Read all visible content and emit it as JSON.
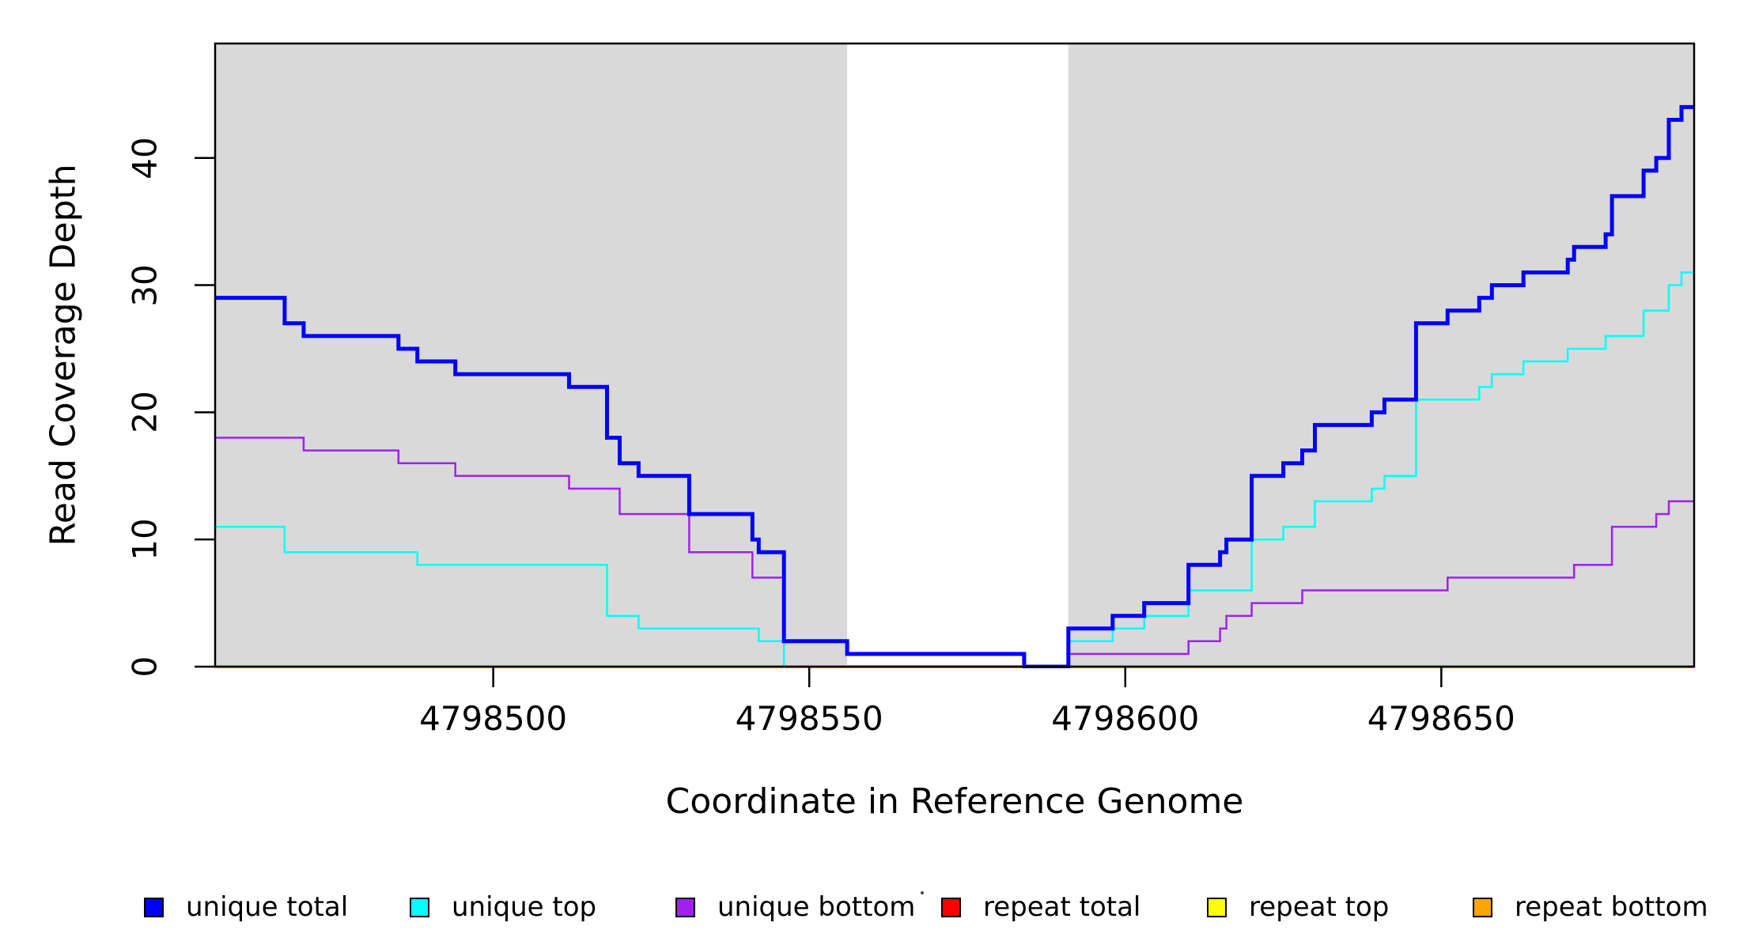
{
  "chart_data": {
    "type": "line",
    "subtype": "step-coverage",
    "title": "",
    "xlabel": "Coordinate in Reference Genome",
    "ylabel": "Read Coverage Depth",
    "x_domain": [
      4798456,
      4798690
    ],
    "y_domain": [
      0,
      49
    ],
    "x_ticks": [
      4798500,
      4798550,
      4798600,
      4798650
    ],
    "y_ticks": [
      0,
      10,
      20,
      30,
      40
    ],
    "grid": false,
    "plot_background": "#ffffff",
    "shading_color": "#D9D9D9",
    "shaded_regions": [
      [
        4798456,
        4798556
      ],
      [
        4798591,
        4798690
      ]
    ],
    "unshaded_gap": [
      4798556,
      4798591
    ],
    "axis_color": "#000000",
    "series": [
      {
        "name": "repeat total",
        "color": "#FF0000",
        "line_width": 4,
        "steps": [
          [
            4798456,
            0
          ]
        ]
      },
      {
        "name": "repeat top",
        "color": "#FFFF00",
        "line_width": 4,
        "steps": [
          [
            4798456,
            0
          ]
        ]
      },
      {
        "name": "repeat bottom",
        "color": "#FFA500",
        "line_width": 4,
        "steps": [
          [
            4798456,
            0
          ]
        ]
      },
      {
        "name": "unique bottom",
        "color": "#A020F0",
        "line_width": 2.5,
        "steps": [
          [
            4798456,
            18
          ],
          [
            4798470,
            17
          ],
          [
            4798485,
            16
          ],
          [
            4798494,
            15
          ],
          [
            4798512,
            14
          ],
          [
            4798520,
            12
          ],
          [
            4798531,
            9
          ],
          [
            4798541,
            7
          ],
          [
            4798546,
            2
          ],
          [
            4798556,
            1
          ],
          [
            4798584,
            0
          ],
          [
            4798591,
            1
          ],
          [
            4798610,
            2
          ],
          [
            4798615,
            3
          ],
          [
            4798616,
            4
          ],
          [
            4798620,
            5
          ],
          [
            4798628,
            6
          ],
          [
            4798651,
            7
          ],
          [
            4798671,
            8
          ],
          [
            4798677,
            11
          ],
          [
            4798684,
            12
          ],
          [
            4798686,
            13
          ]
        ]
      },
      {
        "name": "unique top",
        "color": "#00FFFF",
        "line_width": 2.5,
        "steps": [
          [
            4798456,
            11
          ],
          [
            4798467,
            9
          ],
          [
            4798488,
            8
          ],
          [
            4798518,
            4
          ],
          [
            4798523,
            3
          ],
          [
            4798542,
            2
          ],
          [
            4798546,
            0
          ],
          [
            4798591,
            2
          ],
          [
            4798598,
            3
          ],
          [
            4798603,
            4
          ],
          [
            4798610,
            6
          ],
          [
            4798620,
            10
          ],
          [
            4798625,
            11
          ],
          [
            4798630,
            13
          ],
          [
            4798639,
            14
          ],
          [
            4798641,
            15
          ],
          [
            4798646,
            21
          ],
          [
            4798656,
            22
          ],
          [
            4798658,
            23
          ],
          [
            4798663,
            24
          ],
          [
            4798670,
            25
          ],
          [
            4798676,
            26
          ],
          [
            4798682,
            28
          ],
          [
            4798686,
            30
          ],
          [
            4798688,
            31
          ]
        ]
      },
      {
        "name": "unique total",
        "color": "#0000FF",
        "line_width": 5,
        "steps": [
          [
            4798456,
            29
          ],
          [
            4798467,
            27
          ],
          [
            4798470,
            26
          ],
          [
            4798485,
            25
          ],
          [
            4798488,
            24
          ],
          [
            4798494,
            23
          ],
          [
            4798512,
            22
          ],
          [
            4798518,
            18
          ],
          [
            4798520,
            16
          ],
          [
            4798523,
            15
          ],
          [
            4798531,
            12
          ],
          [
            4798541,
            10
          ],
          [
            4798542,
            9
          ],
          [
            4798546,
            2
          ],
          [
            4798556,
            1
          ],
          [
            4798584,
            0
          ],
          [
            4798591,
            3
          ],
          [
            4798598,
            4
          ],
          [
            4798603,
            5
          ],
          [
            4798610,
            8
          ],
          [
            4798615,
            9
          ],
          [
            4798616,
            10
          ],
          [
            4798620,
            15
          ],
          [
            4798625,
            16
          ],
          [
            4798628,
            17
          ],
          [
            4798630,
            19
          ],
          [
            4798639,
            20
          ],
          [
            4798641,
            21
          ],
          [
            4798646,
            27
          ],
          [
            4798651,
            28
          ],
          [
            4798656,
            29
          ],
          [
            4798658,
            30
          ],
          [
            4798663,
            31
          ],
          [
            4798670,
            32
          ],
          [
            4798671,
            33
          ],
          [
            4798676,
            34
          ],
          [
            4798677,
            37
          ],
          [
            4798682,
            39
          ],
          [
            4798684,
            40
          ],
          [
            4798686,
            43
          ],
          [
            4798688,
            44
          ]
        ]
      }
    ],
    "legend": {
      "position": "bottom",
      "entries": [
        {
          "label": "unique total",
          "color": "#0000FF"
        },
        {
          "label": "unique top",
          "color": "#00FFFF"
        },
        {
          "label": "unique bottom",
          "color": "#A020F0"
        },
        {
          "label": "repeat total",
          "color": "#FF0000"
        },
        {
          "label": "repeat top",
          "color": "#FFFF00"
        },
        {
          "label": "repeat bottom",
          "color": "#FFA500"
        }
      ]
    }
  }
}
